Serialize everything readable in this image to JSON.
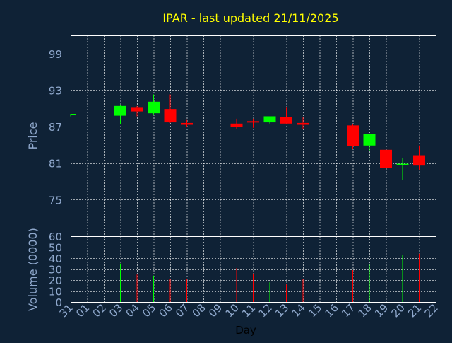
{
  "chart_data": {
    "type": "candlestick",
    "title": "IPAR - last updated 21/11/2025",
    "xlabel": "Day",
    "ylabel": "Price",
    "volume_label": "Volume (0000)",
    "price_ylim": [
      69,
      102
    ],
    "price_ticks": [
      75,
      81,
      87,
      93,
      99
    ],
    "volume_ylim": [
      0,
      60
    ],
    "volume_ticks": [
      0,
      10,
      20,
      30,
      40,
      50,
      60
    ],
    "grid": true,
    "colors": {
      "background": "#0f2236",
      "up": "#00ff00",
      "down": "#ff0000",
      "title": "#ffff00",
      "text": "#8fa8cc",
      "axis": "#ffffff",
      "grid": "#ffffff"
    },
    "x_labels": [
      "31",
      "01",
      "02",
      "03",
      "04",
      "05",
      "06",
      "07",
      "08",
      "09",
      "10",
      "11",
      "12",
      "13",
      "14",
      "15",
      "16",
      "17",
      "18",
      "19",
      "20",
      "21",
      "22"
    ],
    "candles": [
      {
        "day": "31",
        "open": 88.9,
        "high": 89.1,
        "low": 88.7,
        "close": 89.1,
        "volume": 0
      },
      {
        "day": "03",
        "open": 88.8,
        "high": 90.6,
        "low": 87.4,
        "close": 90.4,
        "volume": 35
      },
      {
        "day": "04",
        "open": 90.1,
        "high": 90.4,
        "low": 88.7,
        "close": 89.5,
        "volume": 25
      },
      {
        "day": "05",
        "open": 89.2,
        "high": 92.3,
        "low": 89.0,
        "close": 91.1,
        "volume": 24
      },
      {
        "day": "06",
        "open": 89.9,
        "high": 92.3,
        "low": 87.6,
        "close": 87.7,
        "volume": 21
      },
      {
        "day": "07",
        "open": 87.6,
        "high": 88.2,
        "low": 86.9,
        "close": 87.3,
        "volume": 21
      },
      {
        "day": "10",
        "open": 87.5,
        "high": 88.3,
        "low": 86.6,
        "close": 86.9,
        "volume": 31
      },
      {
        "day": "11",
        "open": 87.9,
        "high": 88.3,
        "low": 86.8,
        "close": 87.7,
        "volume": 26
      },
      {
        "day": "12",
        "open": 87.7,
        "high": 88.7,
        "low": 87.5,
        "close": 88.7,
        "volume": 18
      },
      {
        "day": "13",
        "open": 88.6,
        "high": 90.1,
        "low": 87.5,
        "close": 87.5,
        "volume": 16
      },
      {
        "day": "14",
        "open": 87.6,
        "high": 88.5,
        "low": 86.6,
        "close": 87.3,
        "volume": 21
      },
      {
        "day": "17",
        "open": 87.2,
        "high": 87.4,
        "low": 83.4,
        "close": 83.8,
        "volume": 29
      },
      {
        "day": "18",
        "open": 83.9,
        "high": 85.8,
        "low": 83.0,
        "close": 85.8,
        "volume": 34
      },
      {
        "day": "19",
        "open": 83.2,
        "high": 83.9,
        "low": 77.3,
        "close": 80.2,
        "volume": 57
      },
      {
        "day": "20",
        "open": 80.8,
        "high": 81.8,
        "low": 78.2,
        "close": 80.9,
        "volume": 43
      },
      {
        "day": "21",
        "open": 82.3,
        "high": 83.9,
        "low": 79.8,
        "close": 80.6,
        "volume": 44
      }
    ]
  }
}
